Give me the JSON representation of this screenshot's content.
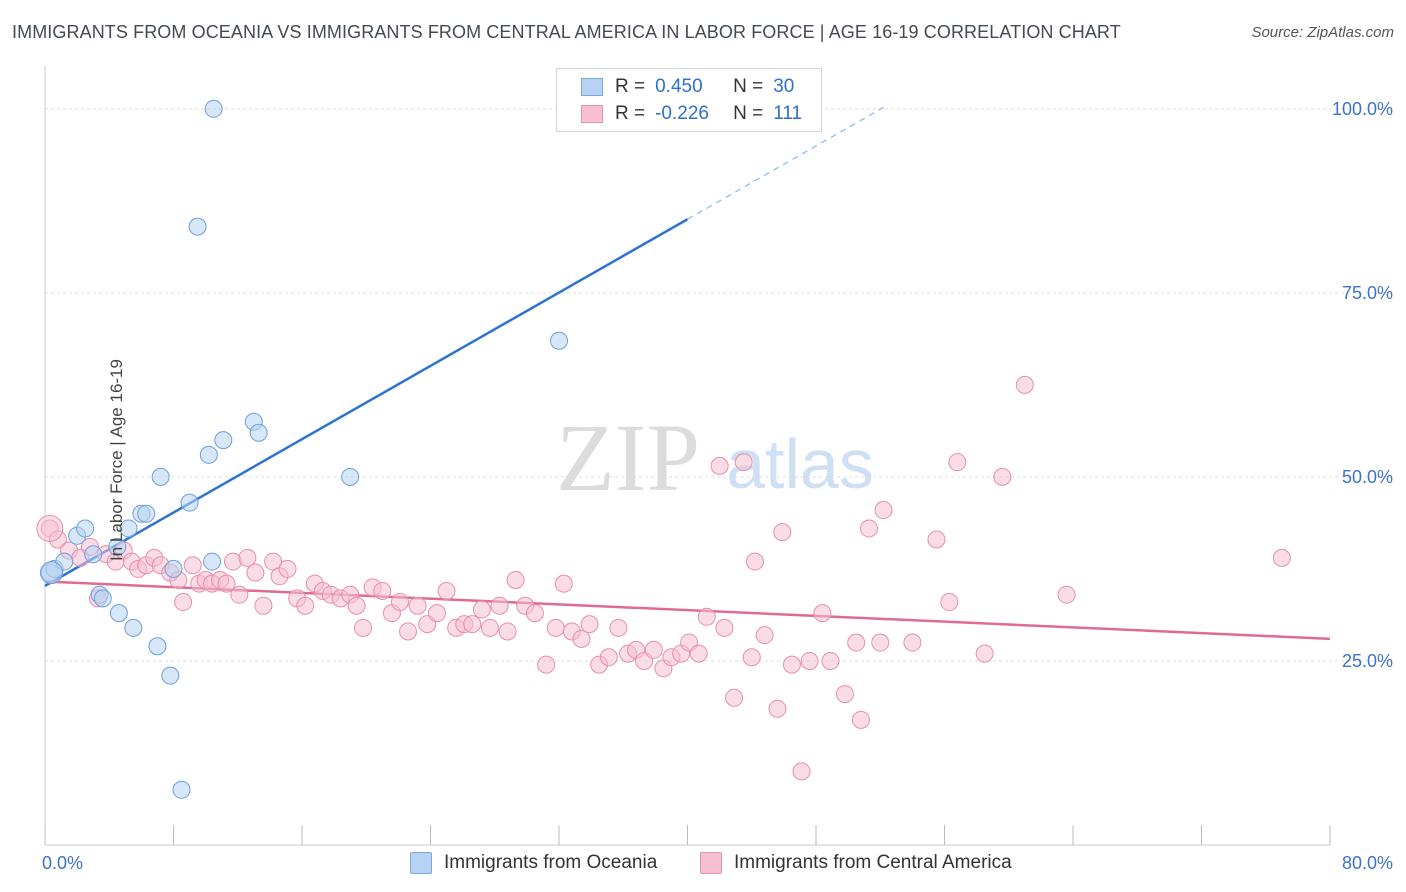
{
  "title": "IMMIGRANTS FROM OCEANIA VS IMMIGRANTS FROM CENTRAL AMERICA IN LABOR FORCE | AGE 16-19 CORRELATION CHART",
  "source": "Source: ZipAtlas.com",
  "watermark": {
    "zip": "ZIP",
    "atlas": "atlas"
  },
  "colors": {
    "blue": "#2f73d2",
    "blue_fill": "#b7d3f3",
    "pink": "#e06a94",
    "pink_fill": "#f6bfd2",
    "axis_text": "#3d72c9"
  },
  "legend": {
    "rows": [
      {
        "r_label": "R =",
        "r_value": "0.450",
        "n_label": "N =",
        "n_value": "30"
      },
      {
        "r_label": "R =",
        "r_value": "-0.226",
        "n_label": "N =",
        "n_value": "111"
      }
    ]
  },
  "bottom_legend": {
    "series1": "Immigrants from Oceania",
    "series2": "Immigrants from Central America"
  },
  "chart_data": {
    "type": "scatter",
    "ylabel": "In Labor Force | Age 16-19",
    "xlim": [
      0,
      80
    ],
    "ylim": [
      0,
      105
    ],
    "x_tick_labels": [
      {
        "x": 0,
        "label": "0.0%"
      },
      {
        "x": 80,
        "label": "80.0%"
      }
    ],
    "y_tick_labels": [
      {
        "y": 25,
        "label": "25.0%"
      },
      {
        "y": 50,
        "label": "50.0%"
      },
      {
        "y": 75,
        "label": "75.0%"
      },
      {
        "y": 100,
        "label": "100.0%"
      }
    ],
    "series": [
      {
        "name": "Immigrants from Oceania",
        "color": "#2f73d2",
        "trend": {
          "x0": 0,
          "y0": 35.2,
          "x1": 40,
          "y1": 85.0,
          "dash_to_x": 52.5
        },
        "points": [
          [
            0.3,
            37.0
          ],
          [
            0.6,
            37.5
          ],
          [
            1.2,
            38.5
          ],
          [
            2.0,
            42.0
          ],
          [
            2.5,
            43.0
          ],
          [
            3.0,
            39.5
          ],
          [
            3.4,
            34.0
          ],
          [
            3.6,
            33.5
          ],
          [
            4.5,
            40.5
          ],
          [
            4.6,
            31.5
          ],
          [
            5.2,
            43.0
          ],
          [
            5.5,
            29.5
          ],
          [
            6.0,
            45.0
          ],
          [
            6.3,
            45.0
          ],
          [
            7.0,
            27.0
          ],
          [
            7.2,
            50.0
          ],
          [
            7.8,
            23.0
          ],
          [
            8.0,
            37.5
          ],
          [
            8.5,
            7.5
          ],
          [
            9.0,
            46.5
          ],
          [
            9.5,
            84.0
          ],
          [
            10.2,
            53.0
          ],
          [
            10.4,
            38.5
          ],
          [
            10.5,
            100.0
          ],
          [
            11.1,
            55.0
          ],
          [
            13.0,
            57.5
          ],
          [
            13.3,
            56.0
          ],
          [
            19.0,
            50.0
          ],
          [
            32.0,
            68.5
          ]
        ]
      },
      {
        "name": "Immigrants from Central America",
        "color": "#e06a94",
        "trend": {
          "x0": 0,
          "y0": 35.8,
          "x1": 80,
          "y1": 28.0
        },
        "points": [
          [
            0.3,
            43.0
          ],
          [
            0.8,
            41.5
          ],
          [
            1.5,
            40.0
          ],
          [
            2.2,
            39.0
          ],
          [
            2.8,
            40.5
          ],
          [
            3.3,
            33.5
          ],
          [
            3.8,
            39.5
          ],
          [
            4.4,
            38.5
          ],
          [
            4.9,
            40.0
          ],
          [
            5.4,
            38.5
          ],
          [
            5.8,
            37.5
          ],
          [
            6.3,
            38.0
          ],
          [
            6.8,
            39.0
          ],
          [
            7.2,
            38.0
          ],
          [
            7.8,
            37.0
          ],
          [
            8.3,
            36.0
          ],
          [
            8.6,
            33.0
          ],
          [
            9.2,
            38.0
          ],
          [
            9.6,
            35.5
          ],
          [
            10.0,
            36.0
          ],
          [
            10.4,
            35.5
          ],
          [
            10.9,
            36.0
          ],
          [
            11.3,
            35.5
          ],
          [
            11.7,
            38.5
          ],
          [
            12.1,
            34.0
          ],
          [
            12.6,
            39.0
          ],
          [
            13.1,
            37.0
          ],
          [
            13.6,
            32.5
          ],
          [
            14.2,
            38.5
          ],
          [
            14.6,
            36.5
          ],
          [
            15.1,
            37.5
          ],
          [
            15.7,
            33.5
          ],
          [
            16.2,
            32.5
          ],
          [
            16.8,
            35.5
          ],
          [
            17.3,
            34.5
          ],
          [
            17.8,
            34.0
          ],
          [
            18.4,
            33.5
          ],
          [
            19.0,
            34.0
          ],
          [
            19.4,
            32.5
          ],
          [
            19.8,
            29.5
          ],
          [
            20.4,
            35.0
          ],
          [
            21.0,
            34.5
          ],
          [
            21.6,
            31.5
          ],
          [
            22.1,
            33.0
          ],
          [
            22.6,
            29.0
          ],
          [
            23.2,
            32.5
          ],
          [
            23.8,
            30.0
          ],
          [
            24.4,
            31.5
          ],
          [
            25.0,
            34.5
          ],
          [
            25.6,
            29.5
          ],
          [
            26.1,
            30.0
          ],
          [
            26.6,
            30.0
          ],
          [
            27.2,
            32.0
          ],
          [
            27.7,
            29.5
          ],
          [
            28.3,
            32.5
          ],
          [
            28.8,
            29.0
          ],
          [
            29.3,
            36.0
          ],
          [
            29.9,
            32.5
          ],
          [
            30.5,
            31.5
          ],
          [
            31.2,
            24.5
          ],
          [
            31.8,
            29.5
          ],
          [
            32.3,
            35.5
          ],
          [
            32.8,
            29.0
          ],
          [
            33.4,
            28.0
          ],
          [
            33.9,
            30.0
          ],
          [
            34.5,
            24.5
          ],
          [
            35.1,
            25.5
          ],
          [
            35.7,
            29.5
          ],
          [
            36.3,
            26.0
          ],
          [
            36.8,
            26.5
          ],
          [
            37.3,
            25.0
          ],
          [
            37.9,
            26.5
          ],
          [
            38.5,
            24.0
          ],
          [
            39.0,
            25.5
          ],
          [
            39.6,
            26.0
          ],
          [
            40.1,
            27.5
          ],
          [
            40.7,
            26.0
          ],
          [
            41.2,
            31.0
          ],
          [
            42.0,
            51.5
          ],
          [
            42.3,
            29.5
          ],
          [
            42.9,
            20.0
          ],
          [
            43.5,
            52.0
          ],
          [
            44.0,
            25.5
          ],
          [
            44.2,
            38.5
          ],
          [
            44.8,
            28.5
          ],
          [
            45.6,
            18.5
          ],
          [
            45.9,
            42.5
          ],
          [
            46.5,
            24.5
          ],
          [
            47.1,
            10.0
          ],
          [
            47.6,
            25.0
          ],
          [
            48.4,
            31.5
          ],
          [
            48.9,
            25.0
          ],
          [
            49.8,
            20.5
          ],
          [
            50.5,
            27.5
          ],
          [
            50.8,
            17.0
          ],
          [
            51.3,
            43.0
          ],
          [
            52.2,
            45.5
          ],
          [
            52.0,
            27.5
          ],
          [
            54.0,
            27.5
          ],
          [
            55.5,
            41.5
          ],
          [
            56.3,
            33.0
          ],
          [
            56.8,
            52.0
          ],
          [
            58.5,
            26.0
          ],
          [
            59.6,
            50.0
          ],
          [
            61.0,
            62.5
          ],
          [
            63.6,
            34.0
          ],
          [
            77.0,
            39.0
          ]
        ]
      }
    ]
  }
}
